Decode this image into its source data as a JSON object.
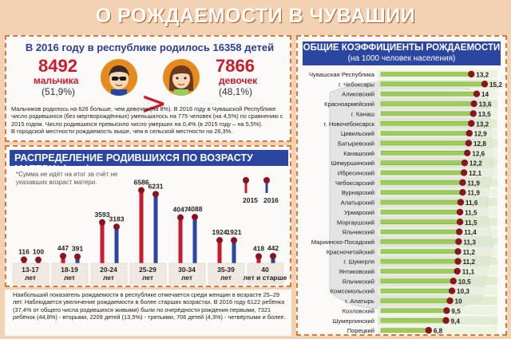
{
  "page": {
    "title": "О РОЖДАЕМОСТИ В ЧУВАШИИ"
  },
  "births": {
    "headline": "В 2016 году в республике родилось 16358 детей",
    "boys_count": "8492",
    "boys_label": "мальчика",
    "boys_pct": "(51,9%)",
    "girls_count": "7866",
    "girls_label": "девочек",
    "girls_pct": "(48,1%)",
    "text_1": "Мальчиков родилось на 626 больше, чем девочек (на 8%). В 2016 году в Чувашской Республике число родившихся (без мертворождённых) уменьшилось на 775 человек (на 4,5%) по сравнению с 2015 годом. Число родившихся превысило число умерших на 0,4% (в 2015 году – на 5,5%).",
    "text_2": "В городской местности рождаемость выше, чем в сельской местности на 26,3%."
  },
  "age_chart_meta": {
    "heading": "РАСПРЕДЕЛЕНИЕ РОДИВШИХСЯ ПО ВОЗРАСТУ МАТЕРИ* (чел.)",
    "note": "*Сумма не идёт на итог за счёт не указавших возраст матери.",
    "legend_2015": "2015",
    "legend_2016": "2016"
  },
  "bottom": {
    "text": "Наибольший показатель рождаемости в республике отмечается среди женщин в возрасте 25–29 лет. Наблюдается увеличение рождаемости в более старших возрастах. В 2016 году 6122 ребёнка (37,4% от общего числа родившихся живыми) были по очерёдности рождения первыми, 7321 ребёнок (44,8%) - вторыми, 2209 детей (13,5%) - третьими, 706 детей (4,3%) - четвёртыми и более."
  },
  "rates_meta": {
    "heading": "ОБЩИЕ КОЭФФИЦИЕНТЫ РОЖДАЕМОСТИ",
    "subheading": "(на 1000 человек населения)"
  },
  "colors": {
    "red": "#c81b2b",
    "blue": "#2a46a0",
    "orange": "#e58b1e",
    "green": "#9ccc5a"
  },
  "chart_data": [
    {
      "type": "bar",
      "title": "РАСПРЕДЕЛЕНИЕ РОДИВШИХСЯ ПО ВОЗРАСТУ МАТЕРИ* (чел.)",
      "categories": [
        "13-17 лет",
        "18-19 лет",
        "20-24 лет",
        "25-29 лет",
        "30-34 лет",
        "35-39 лет",
        "40 лет и старше"
      ],
      "series": [
        {
          "name": "2015",
          "values": [
            116,
            447,
            3593,
            6586,
            4047,
            1924,
            418
          ]
        },
        {
          "name": "2016",
          "values": [
            100,
            391,
            3183,
            6231,
            4088,
            1921,
            442
          ]
        }
      ],
      "ylim": [
        0,
        7000
      ],
      "legend": "top-right"
    },
    {
      "type": "bar",
      "orientation": "horizontal",
      "title": "ОБЩИЕ КОЭФФИЦИЕНТЫ РОЖДАЕМОСТИ",
      "subtitle": "(на 1000 человек населения)",
      "categories": [
        "Чувашская Республика",
        "г. Чебоксары",
        "Аликовский",
        "Красноармейский",
        "г. Канаш",
        "г. Новочебоксарск",
        "Цивильский",
        "Батыревский",
        "Канашский",
        "Шемуршинский",
        "Ибресинский",
        "Чебоксарский",
        "Вурнарский",
        "Алатырский",
        "Урмарский",
        "Моргаушский",
        "Яльчикский",
        "Мариинско-Посадский",
        "Красночетайский",
        "г. Шумерля",
        "Янтиковский",
        "Яльчикский",
        "Комсомольский",
        "г. Алатырь",
        "Козловский",
        "Шумерлинский",
        "Порецкий"
      ],
      "values": [
        13.2,
        15.2,
        14,
        13.6,
        13.5,
        13.2,
        12.9,
        12.8,
        12.6,
        12.2,
        12.1,
        11.9,
        11.9,
        11.6,
        11.5,
        11.5,
        11.4,
        11.3,
        11.2,
        11.2,
        11.1,
        10.5,
        10.3,
        10,
        9.5,
        9.4,
        6.8
      ],
      "value_labels": [
        "13,2",
        "15,2",
        "14",
        "13,6",
        "13,5",
        "13,2",
        "12,9",
        "12,8",
        "12,6",
        "12,2",
        "12,1",
        "11,9",
        "11,9",
        "11,6",
        "11,5",
        "11,5",
        "11,4",
        "11,3",
        "11,2",
        "11,2",
        "11,1",
        "10,5",
        "10,3",
        "10",
        "9,5",
        "9,4",
        "6,8"
      ]
    }
  ]
}
